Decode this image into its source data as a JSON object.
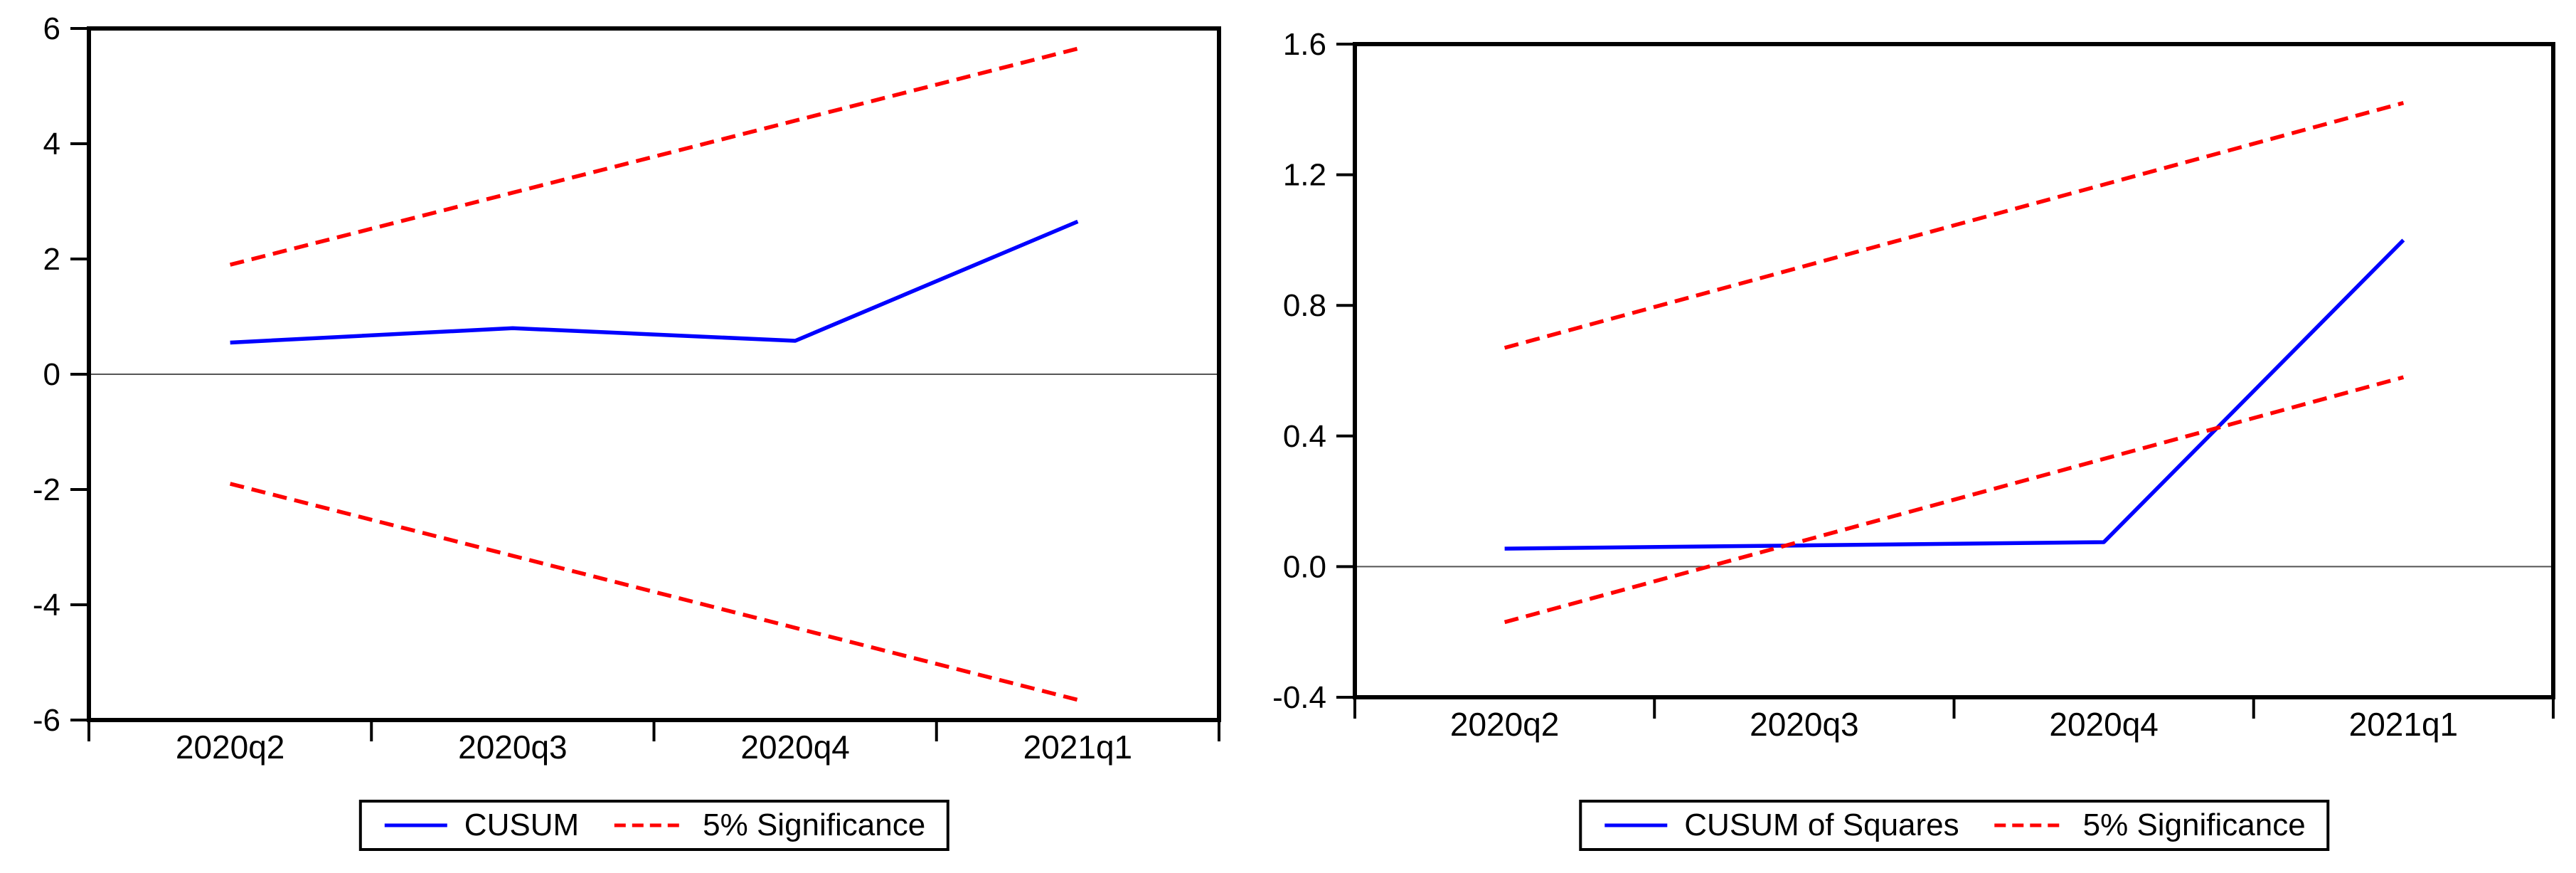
{
  "figure": {
    "background": "#ffffff",
    "description": "CUSUM and CUSUM of Squares stability test charts with 5% significance bands"
  },
  "colors": {
    "cusum_line": "#0000ff",
    "significance_line": "#ff0000",
    "frame": "#000000",
    "zero_line": "#555555",
    "axis_text": "#000000"
  },
  "chart_data": [
    {
      "type": "line",
      "title": "",
      "categories": [
        "2020q2",
        "2020q3",
        "2020q4",
        "2021q1"
      ],
      "ylim": [
        -6,
        6
      ],
      "yticks": [
        {
          "label": "6",
          "value": 6
        },
        {
          "label": "4",
          "value": 4
        },
        {
          "label": "2",
          "value": 2
        },
        {
          "label": "0",
          "value": 0
        },
        {
          "label": "-2",
          "value": -2
        },
        {
          "label": "-4",
          "value": -4
        },
        {
          "label": "-6",
          "value": -6
        }
      ],
      "zero_line": true,
      "grid": false,
      "legend_position": "bottom",
      "series": [
        {
          "name": "CUSUM",
          "color": "#0000ff",
          "style": "solid",
          "values": [
            0.55,
            0.8,
            0.58,
            2.65
          ]
        },
        {
          "name": "5% Significance upper",
          "color": "#ff0000",
          "style": "dashed",
          "values": [
            1.9,
            3.15,
            4.4,
            5.65
          ]
        },
        {
          "name": "5% Significance lower",
          "color": "#ff0000",
          "style": "dashed",
          "values": [
            -1.9,
            -3.15,
            -4.4,
            -5.65
          ]
        }
      ],
      "legend": [
        {
          "label": "CUSUM",
          "color": "#0000ff",
          "style": "solid"
        },
        {
          "label": "5% Significance",
          "color": "#ff0000",
          "style": "dashed"
        }
      ]
    },
    {
      "type": "line",
      "title": "",
      "categories": [
        "2020q2",
        "2020q3",
        "2020q4",
        "2021q1"
      ],
      "ylim": [
        -0.4,
        1.6
      ],
      "yticks": [
        {
          "label": "1.6",
          "value": 1.6
        },
        {
          "label": "1.2",
          "value": 1.2
        },
        {
          "label": "0.8",
          "value": 0.8
        },
        {
          "label": "0.4",
          "value": 0.4
        },
        {
          "label": "0.0",
          "value": 0.0
        },
        {
          "label": "-0.4",
          "value": -0.4
        }
      ],
      "zero_line": true,
      "grid": false,
      "legend_position": "bottom",
      "series": [
        {
          "name": "CUSUM of Squares",
          "color": "#0000ff",
          "style": "solid",
          "values": [
            0.055,
            0.065,
            0.075,
            1.0
          ]
        },
        {
          "name": "5% Significance upper",
          "color": "#ff0000",
          "style": "dashed",
          "values": [
            0.67,
            0.92,
            1.17,
            1.42
          ]
        },
        {
          "name": "5% Significance lower",
          "color": "#ff0000",
          "style": "dashed",
          "values": [
            -0.17,
            0.08,
            0.33,
            0.58
          ]
        }
      ],
      "legend": [
        {
          "label": "CUSUM of Squares",
          "color": "#0000ff",
          "style": "solid"
        },
        {
          "label": "5% Significance",
          "color": "#ff0000",
          "style": "dashed"
        }
      ]
    }
  ]
}
